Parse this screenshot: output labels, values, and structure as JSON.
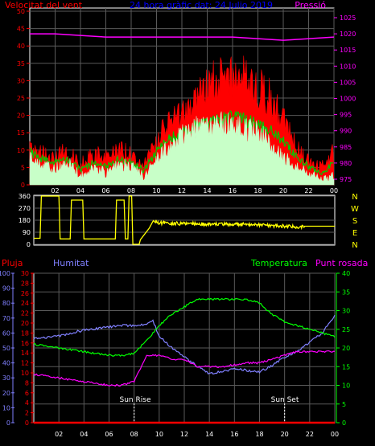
{
  "chart_data": [
    {
      "panel": "wind-pressure",
      "type": "area",
      "title": "24 hora gràfic dat: 24 Julio 2019",
      "left_axis_title": "Velocitat del vent",
      "right_axis_title": "Pressió",
      "x_ticks": [
        "02",
        "04",
        "06",
        "08",
        "10",
        "12",
        "14",
        "16",
        "18",
        "20",
        "22",
        "00"
      ],
      "x_range": [
        0,
        24
      ],
      "left_ticks": [
        "0",
        "5",
        "10",
        "15",
        "20",
        "25",
        "30",
        "35",
        "40",
        "45",
        "50"
      ],
      "left_range": [
        0,
        50
      ],
      "right_ticks": [
        "975",
        "980",
        "985",
        "990",
        "995",
        "1000",
        "1005",
        "1010",
        "1015",
        "1020",
        "1025"
      ],
      "right_range": [
        975,
        1025
      ],
      "grid": true,
      "series": [
        {
          "color": "#ff0000",
          "hours": [
            0,
            1,
            2,
            3,
            4,
            5,
            6,
            7,
            8,
            9,
            10,
            11,
            12,
            13,
            14,
            15,
            16,
            17,
            18,
            19,
            20,
            21,
            22,
            23,
            24
          ],
          "values": [
            11,
            8,
            7,
            9,
            5,
            8,
            7,
            9,
            8,
            5,
            11,
            17,
            18,
            21,
            27,
            28,
            29,
            29,
            26,
            23,
            17,
            10,
            6,
            4,
            9
          ]
        },
        {
          "color": "#00c800",
          "hours": [
            0,
            1,
            2,
            3,
            4,
            5,
            6,
            7,
            8,
            9,
            10,
            11,
            12,
            13,
            14,
            15,
            16,
            17,
            18,
            19,
            20,
            21,
            22,
            23,
            24
          ],
          "values": [
            9,
            7,
            6,
            7,
            4,
            6,
            5,
            7,
            6,
            4,
            9,
            13,
            14,
            16,
            17,
            18,
            19,
            18,
            17,
            15,
            12,
            8,
            5,
            3,
            6
          ]
        },
        {
          "color": "#c8ffc8",
          "hours": [
            0,
            1,
            2,
            3,
            4,
            5,
            6,
            7,
            8,
            9,
            10,
            11,
            12,
            13,
            14,
            15,
            16,
            17,
            18,
            19,
            20,
            21,
            22,
            23,
            24
          ],
          "values": [
            7,
            5,
            4,
            6,
            2,
            4,
            3,
            5,
            5,
            2,
            7,
            10,
            13,
            15,
            15,
            16,
            17,
            15,
            14,
            11,
            7,
            5,
            3,
            1,
            2
          ]
        },
        {
          "color": "#ff00ff",
          "axis": "right",
          "hours": [
            0,
            2,
            4,
            6,
            8,
            10,
            12,
            14,
            16,
            18,
            20,
            22,
            24
          ],
          "values": [
            1020,
            1020,
            1019.5,
            1019,
            1019,
            1019,
            1019,
            1019,
            1019,
            1018.5,
            1018,
            1018.5,
            1019
          ]
        }
      ]
    },
    {
      "panel": "wind-direction",
      "type": "line",
      "x_range": [
        0,
        24
      ],
      "y_ticks": [
        "360",
        "270",
        "180",
        "90",
        "0"
      ],
      "y_range": [
        0,
        360
      ],
      "right_labels": [
        "N",
        "W",
        "S",
        "E",
        "N"
      ],
      "series": [
        {
          "color": "#ffff00",
          "hours": [
            0,
            0.5,
            0.6,
            2.0,
            2.1,
            2.9,
            3.0,
            3.9,
            4.0,
            6.5,
            6.6,
            7.2,
            7.3,
            7.5,
            7.6,
            7.8,
            7.9,
            8.4,
            8.5,
            9.2,
            9.5,
            10,
            12,
            14,
            16,
            18,
            20,
            21,
            21.6,
            24
          ],
          "values": [
            45,
            45,
            360,
            360,
            40,
            40,
            330,
            330,
            40,
            40,
            330,
            330,
            40,
            40,
            360,
            360,
            0,
            0,
            35,
            120,
            180,
            160,
            155,
            150,
            150,
            145,
            135,
            130,
            135,
            135
          ]
        }
      ]
    },
    {
      "panel": "rain-humidity-temperature-dewpoint",
      "type": "line",
      "x_range": [
        0,
        24
      ],
      "axis_titles": [
        "Pluja",
        "Humitat",
        "Temperatura",
        "Punt rosada"
      ],
      "rain_ticks": [
        "0",
        "2",
        "4",
        "6",
        "8",
        "10",
        "12",
        "14",
        "16",
        "18",
        "20",
        "22",
        "24",
        "26",
        "28",
        "30"
      ],
      "rain_range": [
        0,
        30
      ],
      "humidity_ticks": [
        "0",
        "10",
        "20",
        "30",
        "40",
        "50",
        "60",
        "70",
        "80",
        "90",
        "100"
      ],
      "humidity_range": [
        0,
        100
      ],
      "temperature_ticks": [
        "0",
        "5",
        "10",
        "15",
        "20",
        "25",
        "30",
        "35",
        "40"
      ],
      "temperature_range": [
        0,
        40
      ],
      "annotations": [
        "Sun Rise",
        "Sun Set"
      ],
      "series": [
        {
          "name": "Pluja",
          "color": "#ff0000",
          "axis": "rain",
          "hours": [
            0,
            24
          ],
          "values": [
            0,
            0
          ]
        },
        {
          "name": "Humitat",
          "color": "#8080ff",
          "axis": "humidity",
          "hours": [
            0,
            1,
            2,
            3,
            4,
            5,
            6,
            7,
            8,
            9,
            9.5,
            10,
            11,
            12,
            13,
            14,
            15,
            16,
            17,
            18,
            19,
            20,
            21,
            22,
            23,
            24
          ],
          "values": [
            56,
            57,
            58,
            60,
            62,
            63,
            64,
            65,
            65,
            66,
            68,
            58,
            50,
            44,
            38,
            33,
            34,
            36,
            35,
            34,
            38,
            44,
            48,
            54,
            60,
            72
          ]
        },
        {
          "name": "Temperatura",
          "color": "#00ff00",
          "axis": "temperature",
          "hours": [
            0,
            1,
            2,
            3,
            4,
            5,
            6,
            7,
            8,
            9,
            10,
            11,
            12,
            13,
            14,
            15,
            16,
            17,
            18,
            19,
            20,
            21,
            22,
            23,
            24
          ],
          "values": [
            21,
            20.5,
            20,
            19.5,
            19,
            18.5,
            18,
            18,
            18.5,
            22,
            26,
            29,
            31,
            33,
            33,
            33,
            33,
            33,
            32,
            29,
            27,
            26,
            25,
            24,
            23
          ]
        },
        {
          "name": "Punt rosada",
          "color": "#ff00ff",
          "axis": "temperature",
          "hours": [
            0,
            1,
            2,
            3,
            4,
            5,
            6,
            7,
            8,
            9,
            10,
            11,
            12,
            13,
            14,
            15,
            16,
            17,
            18,
            19,
            20,
            21,
            22,
            23,
            24
          ],
          "values": [
            13,
            12.5,
            12,
            11.5,
            11,
            10.5,
            10,
            10,
            11,
            18,
            18,
            17,
            17,
            15,
            15,
            15,
            15.5,
            16,
            16,
            17,
            18,
            19,
            19,
            19,
            19
          ]
        }
      ]
    }
  ]
}
